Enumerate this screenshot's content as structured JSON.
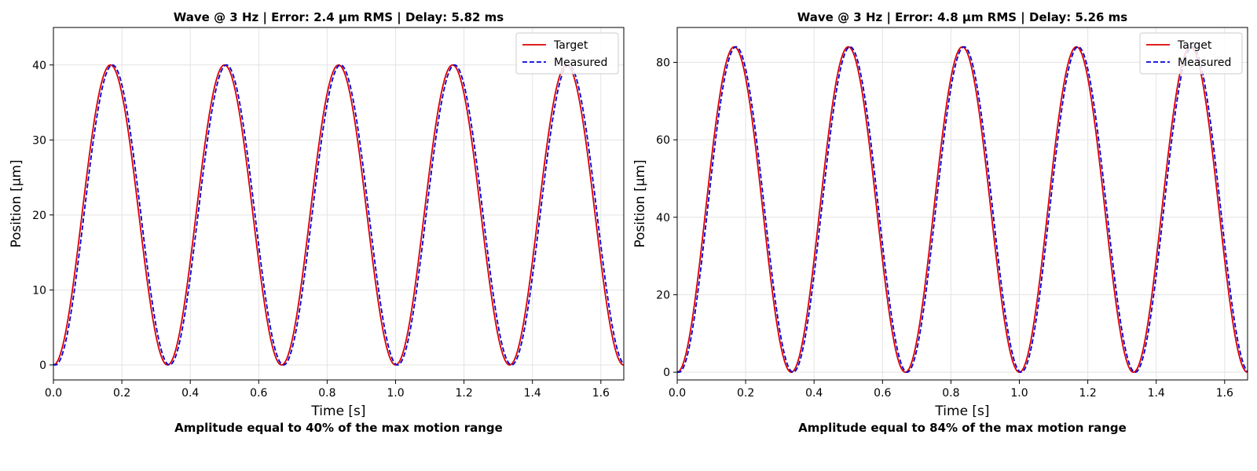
{
  "chart_data": [
    {
      "type": "line",
      "title": "Wave @ 3 Hz | Error: 2.4 µm RMS | Delay: 5.82 ms",
      "xlabel": "Time [s]",
      "ylabel": "Position [µm]",
      "caption": "Amplitude equal to 40% of the max motion range",
      "xlim": [
        0,
        1.667
      ],
      "ylim": [
        -2,
        45
      ],
      "xticks": [
        0.0,
        0.2,
        0.4,
        0.6,
        0.8,
        1.0,
        1.2,
        1.4,
        1.6
      ],
      "xtick_labels": [
        "0.0",
        "0.2",
        "0.4",
        "0.6",
        "0.8",
        "1.0",
        "1.2",
        "1.4",
        "1.6"
      ],
      "yticks": [
        0,
        10,
        20,
        30,
        40
      ],
      "ytick_labels": [
        "0",
        "10",
        "20",
        "30",
        "40"
      ],
      "grid": true,
      "legend_position": "top-right",
      "frequency_hz": 3,
      "peak": 40,
      "series": [
        {
          "name": "Target",
          "color": "#dd0000",
          "style": "solid",
          "delay_s": 0
        },
        {
          "name": "Measured",
          "color": "#0000dd",
          "style": "dashed",
          "delay_s": 0.00582
        }
      ]
    },
    {
      "type": "line",
      "title": "Wave @ 3 Hz | Error: 4.8 µm RMS | Delay: 5.26 ms",
      "xlabel": "Time [s]",
      "ylabel": "Position [µm]",
      "caption": "Amplitude equal to 84% of the max motion range",
      "xlim": [
        0,
        1.667
      ],
      "ylim": [
        -2,
        89
      ],
      "xticks": [
        0.0,
        0.2,
        0.4,
        0.6,
        0.8,
        1.0,
        1.2,
        1.4,
        1.6
      ],
      "xtick_labels": [
        "0.0",
        "0.2",
        "0.4",
        "0.6",
        "0.8",
        "1.0",
        "1.2",
        "1.4",
        "1.6"
      ],
      "yticks": [
        0,
        20,
        40,
        60,
        80
      ],
      "ytick_labels": [
        "0",
        "20",
        "40",
        "60",
        "80"
      ],
      "grid": true,
      "legend_position": "top-right",
      "frequency_hz": 3,
      "peak": 84,
      "series": [
        {
          "name": "Target",
          "color": "#dd0000",
          "style": "solid",
          "delay_s": 0
        },
        {
          "name": "Measured",
          "color": "#0000dd",
          "style": "dashed",
          "delay_s": 0.00526
        }
      ]
    }
  ]
}
